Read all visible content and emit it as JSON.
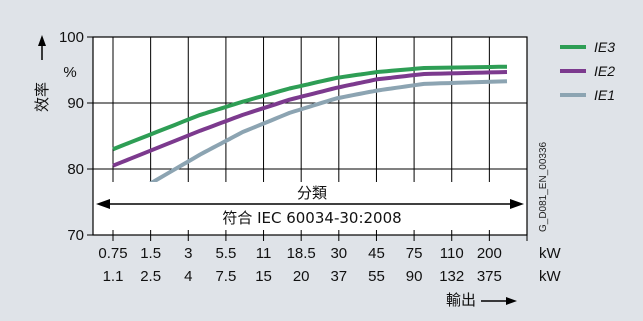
{
  "chart_data": {
    "type": "line",
    "ylabel": "效率",
    "yunit": "%",
    "xlabel": "輸出",
    "yticks": [
      70,
      80,
      90,
      100
    ],
    "ylim": [
      70,
      100
    ],
    "x_ticks_top": [
      "0.75",
      "1.5",
      "3",
      "5.5",
      "11",
      "18.5",
      "30",
      "45",
      "75",
      "110",
      "200"
    ],
    "x_ticks_bottom": [
      "1.1",
      "2.5",
      "4",
      "7.5",
      "15",
      "20",
      "37",
      "55",
      "90",
      "132",
      "375"
    ],
    "x_unit": "kW",
    "annotation_title": "分類",
    "annotation_text": "符合 IEC 60034-30:2008",
    "side_code": "G_D081_EN_00336",
    "series": [
      {
        "name": "IE3",
        "color": "#2e9e55",
        "values": [
          [
            1.1,
            83.0
          ],
          [
            4.0,
            88.2
          ],
          [
            7.5,
            90.2
          ],
          [
            15.0,
            92.2
          ],
          [
            30.0,
            93.8
          ],
          [
            55.0,
            94.7
          ],
          [
            110.0,
            95.3
          ],
          [
            375.0,
            95.5
          ]
        ]
      },
      {
        "name": "IE2",
        "color": "#7c3a8e",
        "values": [
          [
            1.1,
            80.5
          ],
          [
            4.0,
            85.8
          ],
          [
            7.5,
            88.2
          ],
          [
            15.0,
            90.5
          ],
          [
            30.0,
            92.3
          ],
          [
            55.0,
            93.6
          ],
          [
            110.0,
            94.4
          ],
          [
            375.0,
            94.7
          ]
        ]
      },
      {
        "name": "IE1",
        "color": "#8ca4b2",
        "values": [
          [
            1.1,
            74.5
          ],
          [
            4.0,
            82.2
          ],
          [
            7.5,
            85.6
          ],
          [
            15.0,
            88.5
          ],
          [
            30.0,
            90.7
          ],
          [
            55.0,
            91.9
          ],
          [
            110.0,
            92.9
          ],
          [
            375.0,
            93.3
          ]
        ]
      }
    ]
  }
}
